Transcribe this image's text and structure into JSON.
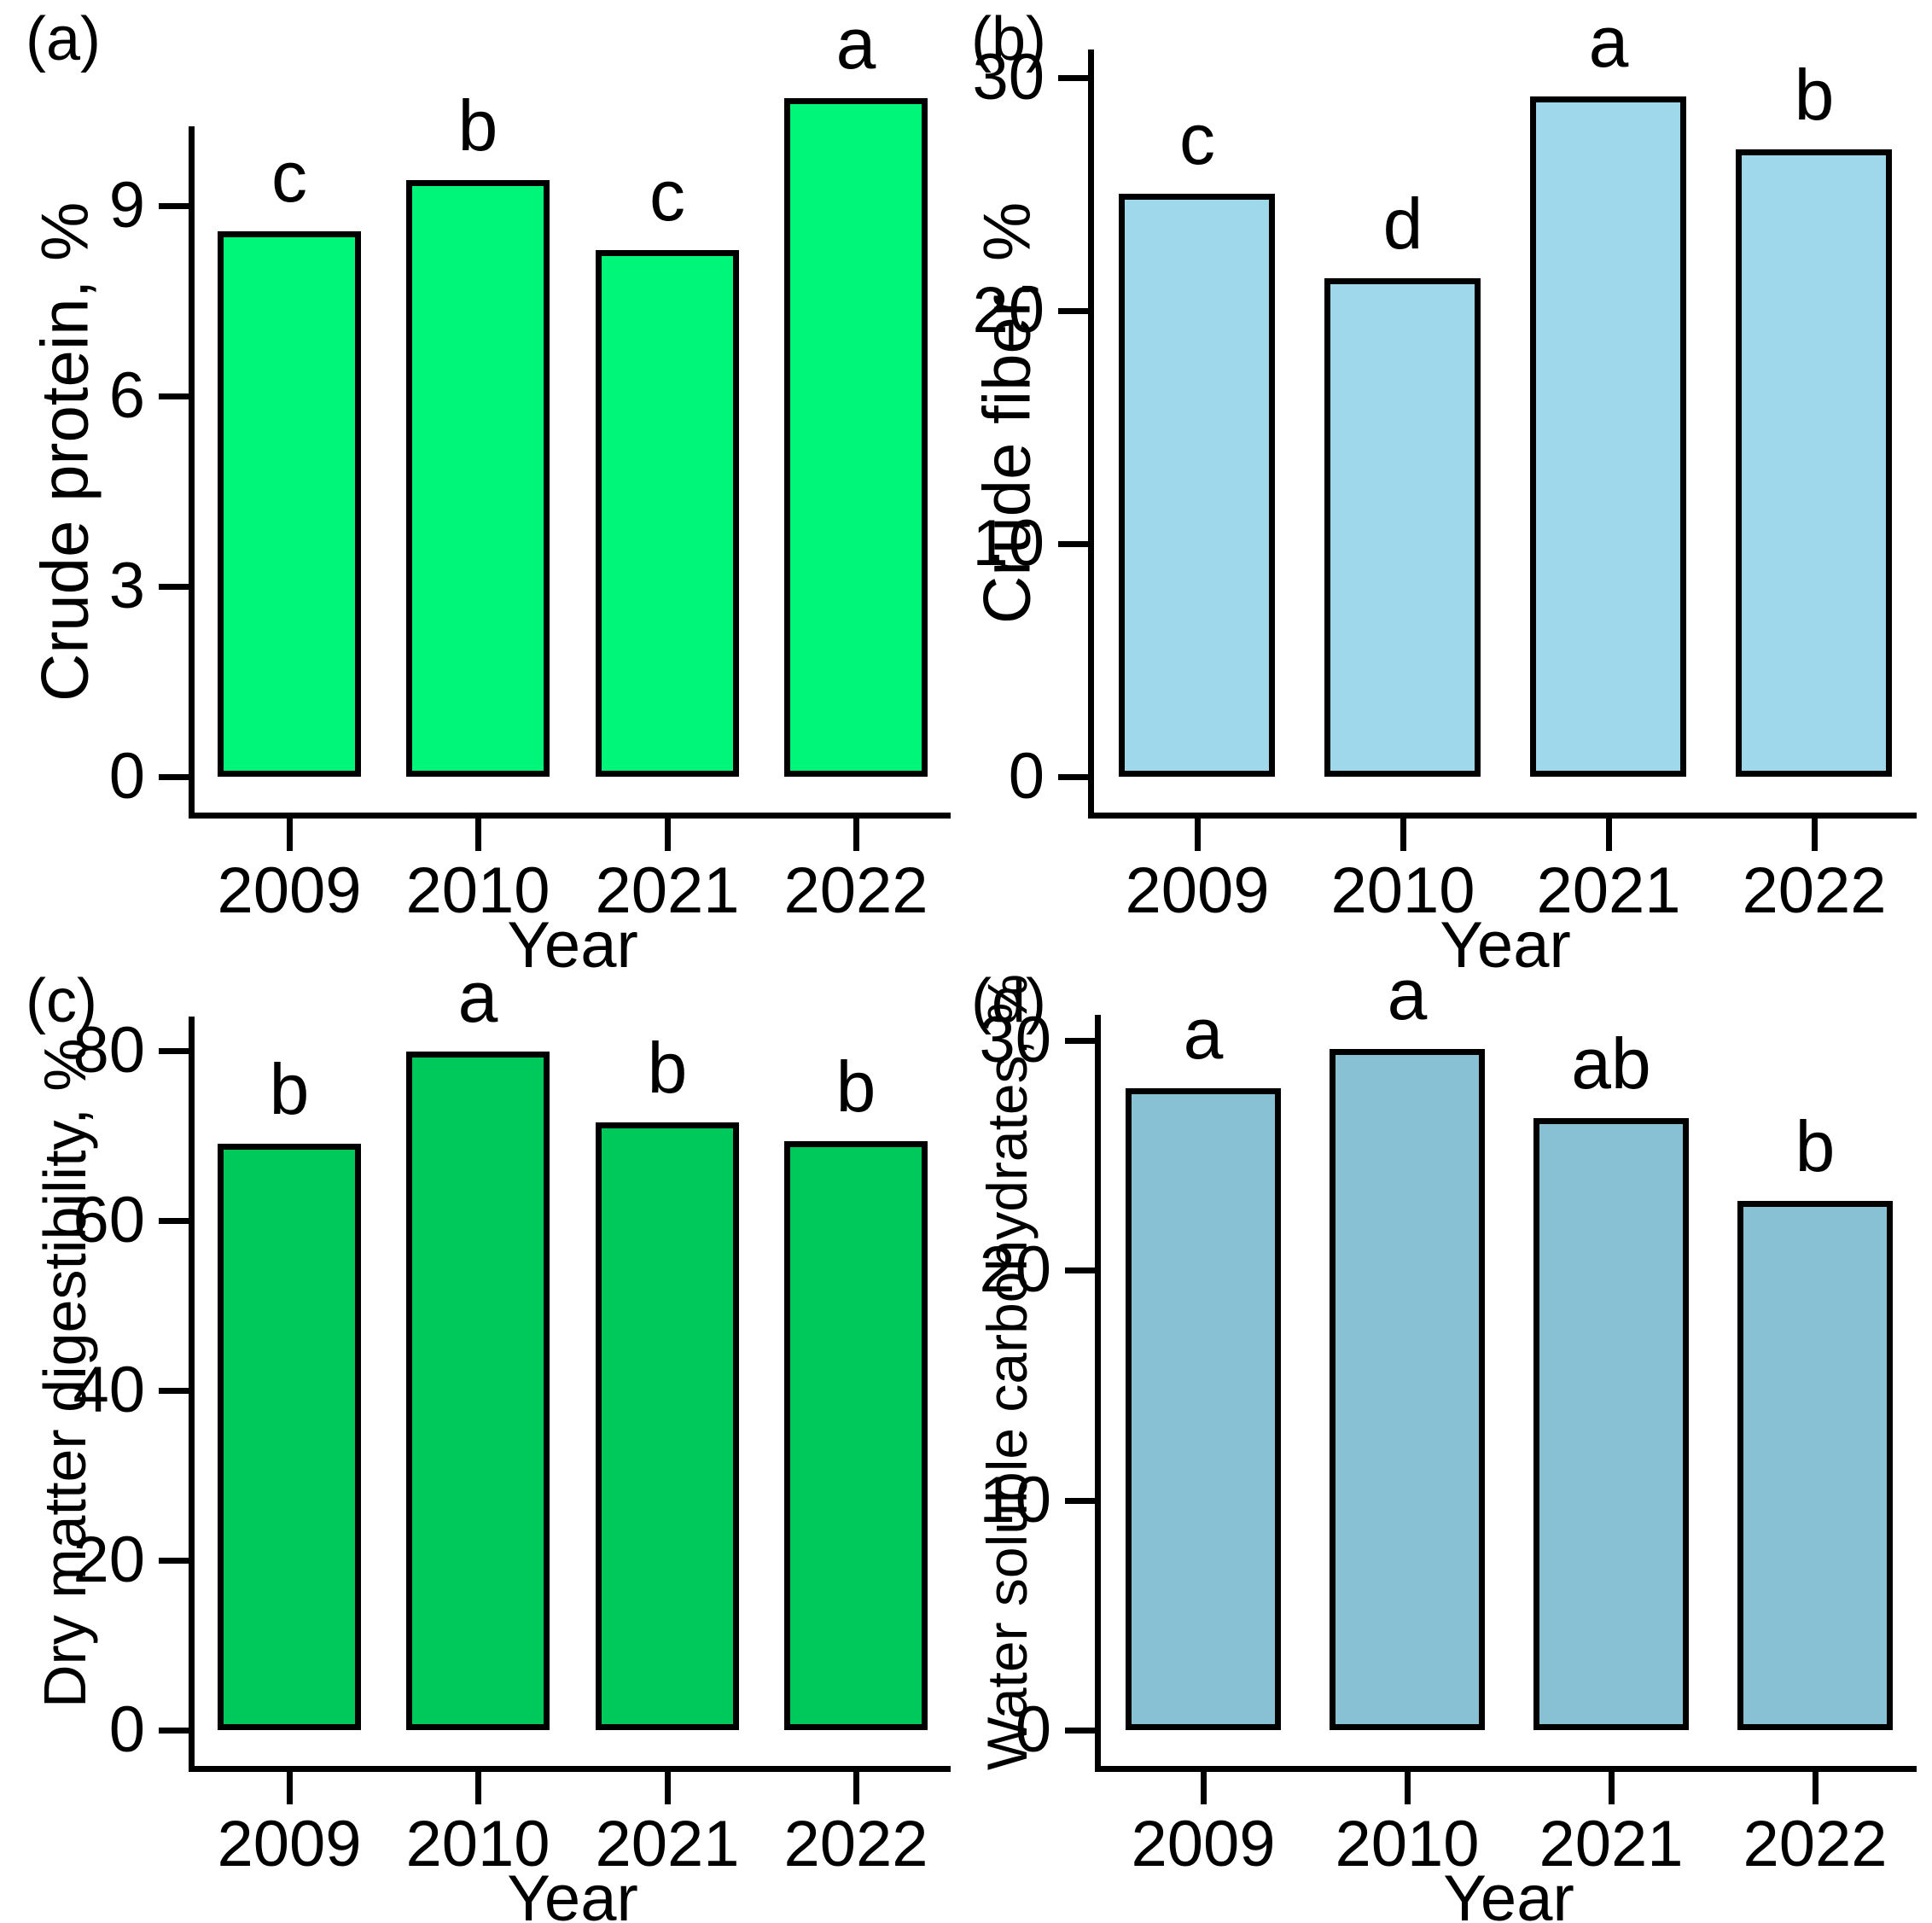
{
  "chart_data": [
    {
      "type": "bar",
      "panel_label": "(a)",
      "ylabel": "Crude protein, %",
      "xlabel": "Year",
      "categories": [
        "2009",
        "2010",
        "2021",
        "2022"
      ],
      "values": [
        8.6,
        9.4,
        8.3,
        10.7
      ],
      "sig_letters": [
        "c",
        "b",
        "c",
        "a"
      ],
      "yticks": [
        0,
        3,
        6,
        9
      ],
      "ylim": [
        0,
        10.25
      ],
      "bar_color": "#00F678",
      "bar_border_color": "#000000",
      "grid": "off",
      "legend": "none"
    },
    {
      "type": "bar",
      "panel_label": "(b)",
      "ylabel": "Crude fiber, %",
      "xlabel": "Year",
      "categories": [
        "2009",
        "2010",
        "2021",
        "2022"
      ],
      "values": [
        25.0,
        21.4,
        29.2,
        26.9
      ],
      "sig_letters": [
        "c",
        "d",
        "a",
        "b"
      ],
      "yticks": [
        0,
        10,
        20,
        30
      ],
      "ylim": [
        0,
        31.2
      ],
      "bar_color": "#9ED8EA",
      "bar_border_color": "#000000",
      "grid": "off",
      "legend": "none"
    },
    {
      "type": "bar",
      "panel_label": "(c)",
      "ylabel": "Dry matter digestibility, %",
      "xlabel": "Year",
      "categories": [
        "2009",
        "2010",
        "2021",
        "2022"
      ],
      "values": [
        69.0,
        79.9,
        71.5,
        69.3
      ],
      "sig_letters": [
        "b",
        "a",
        "b",
        "b"
      ],
      "yticks": [
        0,
        20,
        40,
        60,
        80
      ],
      "ylim": [
        0,
        84
      ],
      "bar_color": "#00C95C",
      "bar_border_color": "#000000",
      "grid": "off",
      "legend": "none"
    },
    {
      "type": "bar",
      "panel_label": "(d)",
      "ylabel": "Water soluble carbohydrates, %",
      "xlabel": "Year",
      "categories": [
        "2009",
        "2010",
        "2021",
        "2022"
      ],
      "values": [
        27.9,
        29.6,
        26.6,
        23.0
      ],
      "sig_letters": [
        "a",
        "a",
        "ab",
        "b"
      ],
      "yticks": [
        0,
        10,
        20,
        30
      ],
      "ylim": [
        0,
        31.1
      ],
      "bar_color": "#87C1D3",
      "bar_border_color": "#000000",
      "grid": "off",
      "legend": "none"
    }
  ]
}
